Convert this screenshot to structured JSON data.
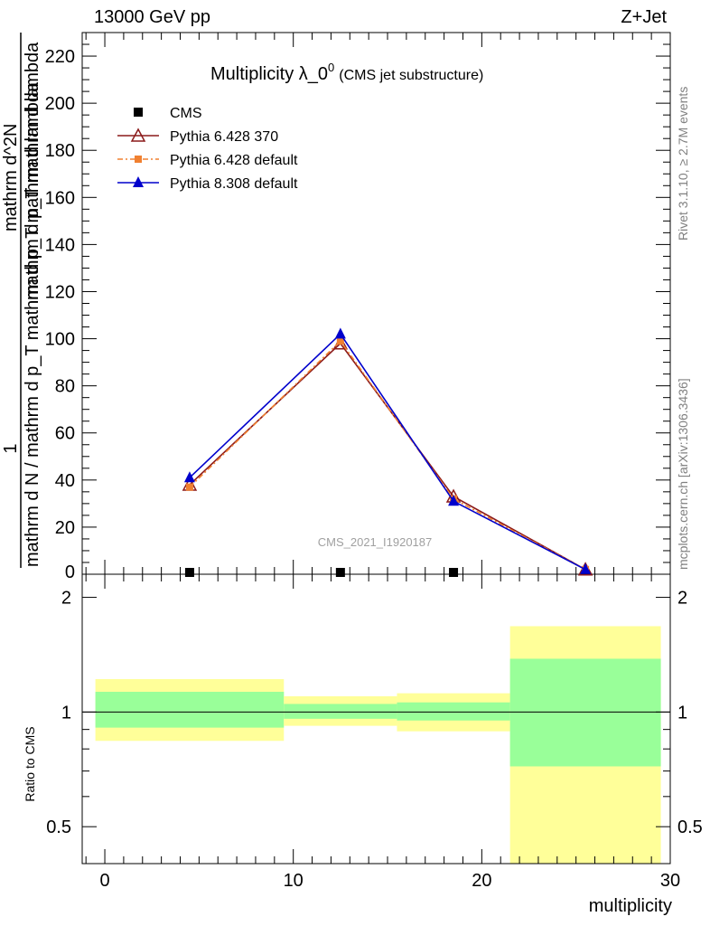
{
  "header": {
    "energy": "13000 GeV pp",
    "process": "Z+Jet"
  },
  "side_labels": {
    "rivet": "Rivet 3.1.10, ≥ 2.7M events",
    "mcplots": "mcplots.cern.ch [arXiv:1306.3436]"
  },
  "chart_data": [
    {
      "type": "line",
      "title_main": "Multiplicity λ_0",
      "title_sup": "0",
      "title_sub": "(CMS jet substructure)",
      "ylabel": {
        "numerator_one": "1",
        "denominator": "mathrm d N / mathrm d p_T mathrm d p_T mathrm d lambda",
        "numerator_dN": "mathrm d^2N",
        "numerator_rest": "mathrm d p_T mathrm d lambda"
      },
      "analysis_label": "CMS_2021_I1920187",
      "xlim": [
        -1.2,
        30
      ],
      "ylim": [
        0,
        230
      ],
      "yticks": [
        20,
        40,
        60,
        80,
        100,
        120,
        140,
        160,
        180,
        200,
        220
      ],
      "ytick_labels": [
        "20",
        "40",
        "60",
        "80",
        "100",
        "120",
        "140",
        "160",
        "180",
        "200",
        "220"
      ],
      "y_bottom_label": "0",
      "legend": "top-left",
      "series": [
        {
          "name": "CMS",
          "marker": "square",
          "color": "#000000",
          "x": [
            4.5,
            12.5,
            18.5,
            25.5
          ],
          "values": [
            0.9,
            0.9,
            0.8,
            0.0
          ]
        },
        {
          "name": "Pythia 6.428 370",
          "marker": "open-triangle",
          "color": "#8b1a1a",
          "x": [
            4.5,
            12.5,
            18.5,
            25.5
          ],
          "values": [
            38,
            98,
            33,
            2
          ]
        },
        {
          "name": "Pythia 6.428 default",
          "marker": "square-small",
          "color": "#f08030",
          "x": [
            4.5,
            12.5,
            18.5,
            25.5
          ],
          "values": [
            37,
            99,
            32,
            2
          ]
        },
        {
          "name": "Pythia 8.308 default",
          "marker": "filled-triangle",
          "color": "#0000cc",
          "x": [
            4.5,
            12.5,
            18.5,
            25.5
          ],
          "values": [
            41,
            102,
            31,
            2
          ]
        }
      ]
    },
    {
      "type": "area",
      "ylabel": "Ratio to CMS",
      "xlabel": "multiplicity",
      "xlim": [
        -1.2,
        30
      ],
      "ylim": [
        0.4,
        2.3
      ],
      "log_scale_y": true,
      "yticks": [
        0.5,
        1,
        2
      ],
      "ytick_labels": [
        "0.5",
        "1",
        "2"
      ],
      "xticks": [
        0,
        10,
        20,
        30
      ],
      "xtick_labels": [
        "0",
        "10",
        "20",
        "30"
      ],
      "bins": [
        {
          "x": [
            -0.5,
            9.5
          ],
          "green": [
            0.91,
            1.13
          ],
          "yellow": [
            0.84,
            1.22
          ]
        },
        {
          "x": [
            9.5,
            15.5
          ],
          "green": [
            0.96,
            1.05
          ],
          "yellow": [
            0.92,
            1.1
          ]
        },
        {
          "x": [
            15.5,
            21.5
          ],
          "green": [
            0.95,
            1.06
          ],
          "yellow": [
            0.89,
            1.12
          ]
        },
        {
          "x": [
            21.5,
            29.5
          ],
          "green": [
            0.72,
            1.38
          ],
          "yellow": [
            0.4,
            1.68
          ]
        }
      ],
      "colors": {
        "green": "#99ff99",
        "yellow": "#ffff99"
      }
    }
  ]
}
